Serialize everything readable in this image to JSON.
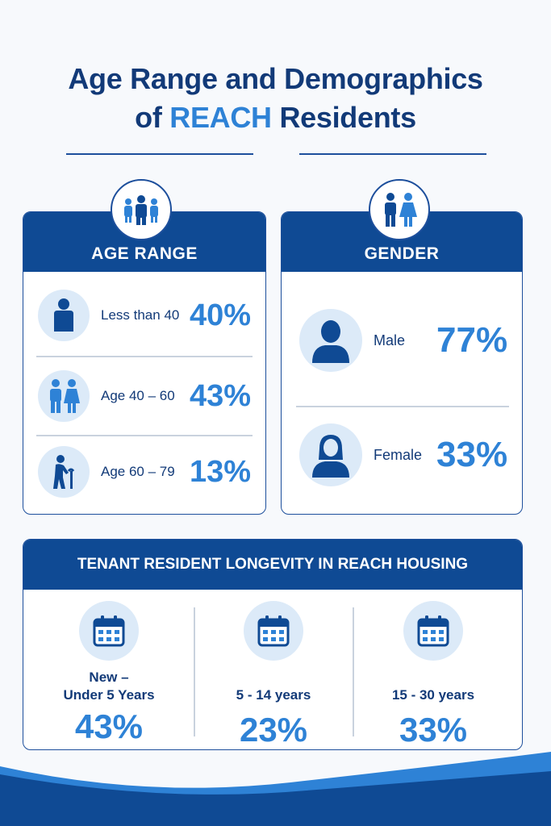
{
  "title": {
    "line1": "Age Range and Demographics",
    "line2_prefix": "of",
    "line2_highlight": "REACH",
    "line2_suffix": "Residents"
  },
  "age_range": {
    "heading": "AGE RANGE",
    "badge_icon": "group-icon",
    "rows": [
      {
        "label": "Less than 40",
        "value": "40%",
        "icon": "person-icon"
      },
      {
        "label": "Age 40 – 60",
        "value": "43%",
        "icon": "couple-icon"
      },
      {
        "label": "Age 60 – 79",
        "value": "13%",
        "icon": "elderly-person-icon"
      }
    ]
  },
  "gender": {
    "heading": "GENDER",
    "badge_icon": "man-woman-icon",
    "rows": [
      {
        "label": "Male",
        "value": "77%",
        "icon": "male-avatar-icon"
      },
      {
        "label": "Female",
        "value": "33%",
        "icon": "female-avatar-icon"
      }
    ]
  },
  "longevity": {
    "heading": "TENANT RESIDENT LONGEVITY IN REACH HOUSING",
    "columns": [
      {
        "label_line1": "New –",
        "label_line2": "Under 5 Years",
        "value": "43%",
        "icon": "calendar-icon"
      },
      {
        "label_line1": "",
        "label_line2": "5 - 14 years",
        "value": "23%",
        "icon": "calendar-icon"
      },
      {
        "label_line1": "",
        "label_line2": "15 - 30 years",
        "value": "33%",
        "icon": "calendar-icon"
      }
    ]
  },
  "colors": {
    "navy": "#0f4a94",
    "accent": "#2e82d6",
    "circle_bg": "#dceaf8"
  }
}
